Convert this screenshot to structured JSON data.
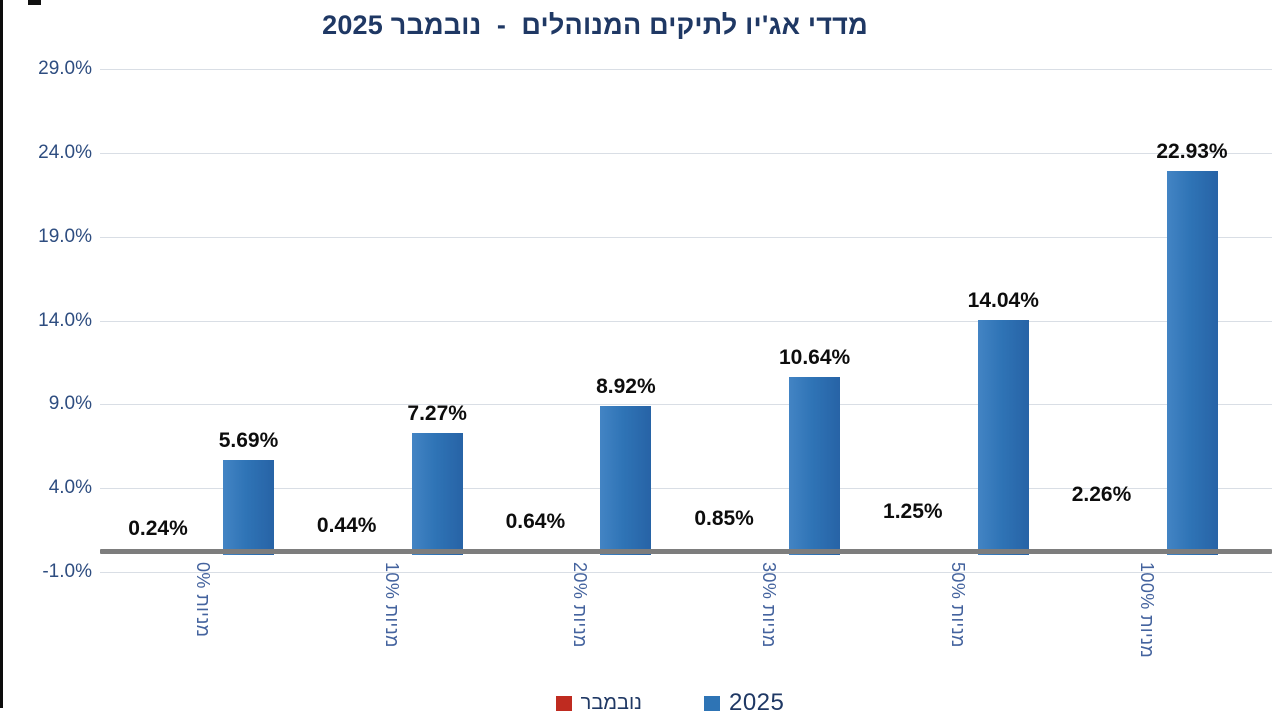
{
  "title": "מדדי אג'יו לתיקים המנוהלים  -  נובמבר 2025",
  "chart_data": {
    "type": "bar",
    "title": "מדדי אג'יו לתיקים המנוהלים - נובמבר 2025",
    "categories": [
      "מניות 0%",
      "מניות 10%",
      "מניות 20%",
      "מניות 30%",
      "מניות 50%",
      "מניות 100%"
    ],
    "series": [
      {
        "name": "נובמבר",
        "color": "#c02a1e",
        "values": [
          0.24,
          0.44,
          0.64,
          0.85,
          1.25,
          2.26
        ],
        "labels": [
          "0.24%",
          "0.44%",
          "0.64%",
          "0.85%",
          "1.25%",
          "2.26%"
        ]
      },
      {
        "name": "2025",
        "color": "#2e74b5",
        "values": [
          5.69,
          7.27,
          8.92,
          10.64,
          14.04,
          22.93
        ],
        "labels": [
          "5.69%",
          "7.27%",
          "8.92%",
          "10.64%",
          "14.04%",
          "22.93%"
        ]
      }
    ],
    "y_axis": {
      "ticks": [
        29,
        24,
        19,
        14,
        9,
        4,
        -1
      ],
      "tick_labels": [
        "29.0%",
        "24.0%",
        "19.0%",
        "14.0%",
        "9.0%",
        "4.0%",
        "-1.0%"
      ],
      "ylim": [
        -1,
        29
      ],
      "grid": true
    },
    "legend": {
      "position": "bottom",
      "items": [
        {
          "label": "נובמבר",
          "color": "#bf2b20"
        },
        {
          "label": "2025",
          "color": "#2e74b5"
        }
      ]
    }
  },
  "colors": {
    "title": "#1f3864",
    "y_labels": "#2e4d80",
    "x_labels": "#44639e",
    "gridline": "#d9dee5",
    "axis_line": "#7d7d7d",
    "bar_blue": "#2e74b6",
    "bar_red": "#c02a1e",
    "value_labels": "#0d0d0d",
    "background": "#ffffff"
  }
}
